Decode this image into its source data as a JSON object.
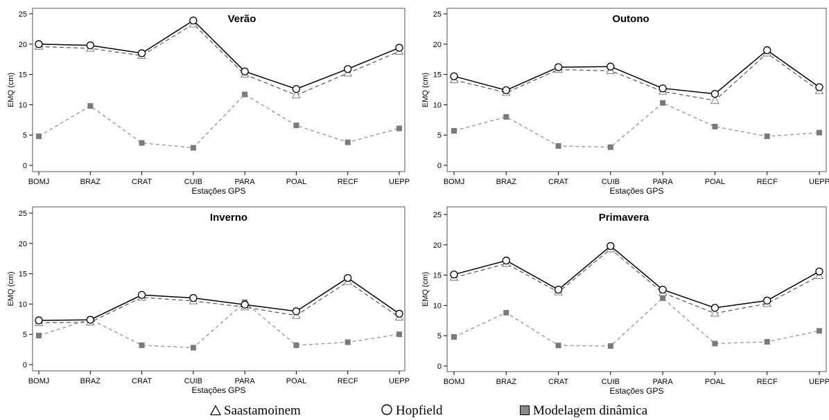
{
  "chart_data": [
    {
      "type": "line",
      "title": "Verão",
      "xlabel": "Estações GPS",
      "ylabel": "EMQ (cm)",
      "categories": [
        "BOMJ",
        "BRAZ",
        "CRAT",
        "CUIB",
        "PARA",
        "POAL",
        "RECF",
        "UEPP"
      ],
      "ylim": [
        0,
        25
      ],
      "yticks": [
        0,
        5,
        10,
        15,
        20,
        25
      ],
      "series": [
        {
          "name": "Saastamoinem",
          "values": [
            19.6,
            19.3,
            18.1,
            23.3,
            15.0,
            11.6,
            15.2,
            18.8
          ]
        },
        {
          "name": "Hopfield",
          "values": [
            20.0,
            19.8,
            18.5,
            23.9,
            15.5,
            12.6,
            15.9,
            19.4
          ]
        },
        {
          "name": "Modelagem dinâmica",
          "values": [
            4.8,
            9.8,
            3.7,
            2.9,
            11.7,
            6.6,
            3.8,
            6.1
          ]
        }
      ]
    },
    {
      "type": "line",
      "title": "Outono",
      "xlabel": "Estações GPS",
      "ylabel": "EMQ (cm)",
      "categories": [
        "BOMJ",
        "BRAZ",
        "CRAT",
        "CUIB",
        "PARA",
        "POAL",
        "RECF",
        "UEPP"
      ],
      "ylim": [
        0,
        25
      ],
      "yticks": [
        0,
        5,
        10,
        15,
        20,
        25
      ],
      "series": [
        {
          "name": "Saastamoinem",
          "values": [
            14.1,
            12.0,
            15.8,
            15.6,
            12.2,
            10.7,
            18.5,
            12.3
          ]
        },
        {
          "name": "Hopfield",
          "values": [
            14.7,
            12.4,
            16.2,
            16.3,
            12.7,
            11.8,
            19.0,
            12.9
          ]
        },
        {
          "name": "Modelagem dinâmica",
          "values": [
            5.7,
            8.0,
            3.2,
            3.0,
            10.3,
            6.4,
            4.8,
            5.4
          ]
        }
      ]
    },
    {
      "type": "line",
      "title": "Inverno",
      "xlabel": "Estações GPS",
      "ylabel": "EMQ (cm)",
      "categories": [
        "BOMJ",
        "BRAZ",
        "CRAT",
        "CUIB",
        "PARA",
        "POAL",
        "RECF",
        "UEPP"
      ],
      "ylim": [
        0,
        25
      ],
      "yticks": [
        0,
        5,
        10,
        15,
        20,
        25
      ],
      "series": [
        {
          "name": "Saastamoinem",
          "values": [
            6.9,
            7.0,
            11.1,
            10.5,
            9.5,
            8.1,
            13.7,
            7.8
          ]
        },
        {
          "name": "Hopfield",
          "values": [
            7.3,
            7.4,
            11.5,
            11.0,
            9.9,
            8.8,
            14.3,
            8.4
          ]
        },
        {
          "name": "Modelagem dinâmica",
          "values": [
            4.8,
            7.5,
            3.2,
            2.8,
            10.3,
            3.2,
            3.7,
            5.0
          ]
        }
      ]
    },
    {
      "type": "line",
      "title": "Primavera",
      "xlabel": "Estações GPS",
      "ylabel": "EMQ (cm)",
      "categories": [
        "BOMJ",
        "BRAZ",
        "CRAT",
        "CUIB",
        "PARA",
        "POAL",
        "RECF",
        "UEPP"
      ],
      "ylim": [
        0,
        25
      ],
      "yticks": [
        0,
        5,
        10,
        15,
        20,
        25
      ],
      "series": [
        {
          "name": "Saastamoinem",
          "values": [
            14.6,
            16.9,
            12.2,
            19.3,
            12.1,
            8.7,
            10.3,
            14.9
          ]
        },
        {
          "name": "Hopfield",
          "values": [
            15.1,
            17.4,
            12.6,
            19.8,
            12.6,
            9.6,
            10.8,
            15.6
          ]
        },
        {
          "name": "Modelagem dinâmica",
          "values": [
            4.8,
            8.8,
            3.4,
            3.3,
            11.2,
            3.7,
            4.0,
            5.8
          ]
        }
      ]
    }
  ],
  "legend": {
    "items": [
      {
        "label": "Saastamoinem",
        "marker": "triangle-icon"
      },
      {
        "label": "Hopfield",
        "marker": "circle-icon"
      },
      {
        "label": "Modelagem dinâmica",
        "marker": "square-icon"
      }
    ]
  },
  "colors": {
    "hopfield_line": "#000000",
    "saastamoinen_line": "#555555",
    "saastamoinen_marker": "#888888",
    "dynamic_line": "#9a9a9a",
    "dynamic_marker": "#7a7a7a",
    "frame": "#555555"
  }
}
